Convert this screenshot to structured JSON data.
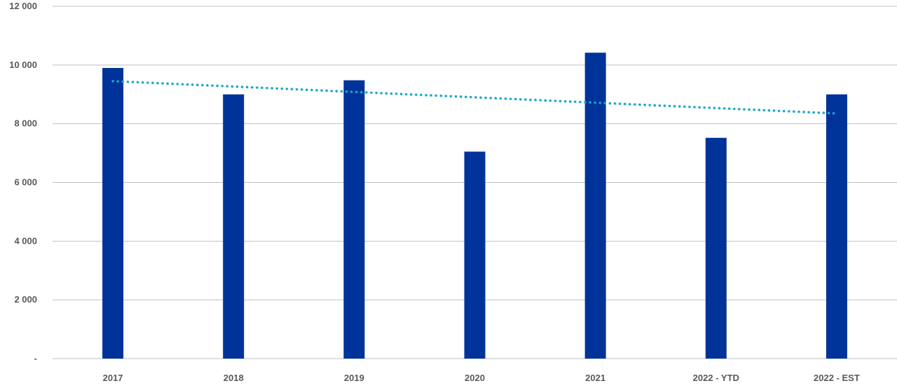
{
  "chart_data": {
    "type": "bar",
    "title": "",
    "xlabel": "",
    "ylabel": "",
    "categories": [
      "2017",
      "2018",
      "2019",
      "2020",
      "2021",
      "2022 - YTD",
      "2022 - EST"
    ],
    "values": [
      9900,
      9000,
      9480,
      7050,
      10420,
      7520,
      9000
    ],
    "ylim": [
      0,
      12000
    ],
    "yticks": [
      0,
      2000,
      4000,
      6000,
      8000,
      10000,
      12000
    ],
    "ytick_labels": [
      "-",
      "2 000",
      "4 000",
      "6 000",
      "8 000",
      "10 000",
      "12 000"
    ],
    "grid": true,
    "legend": "none",
    "trendline": {
      "style": "dotted",
      "start_value": 9450,
      "end_value": 8350
    },
    "colors": {
      "bar": "#00339A",
      "trend": "#1BA7C6",
      "grid": "#BFBFBF",
      "text": "#595959"
    }
  }
}
